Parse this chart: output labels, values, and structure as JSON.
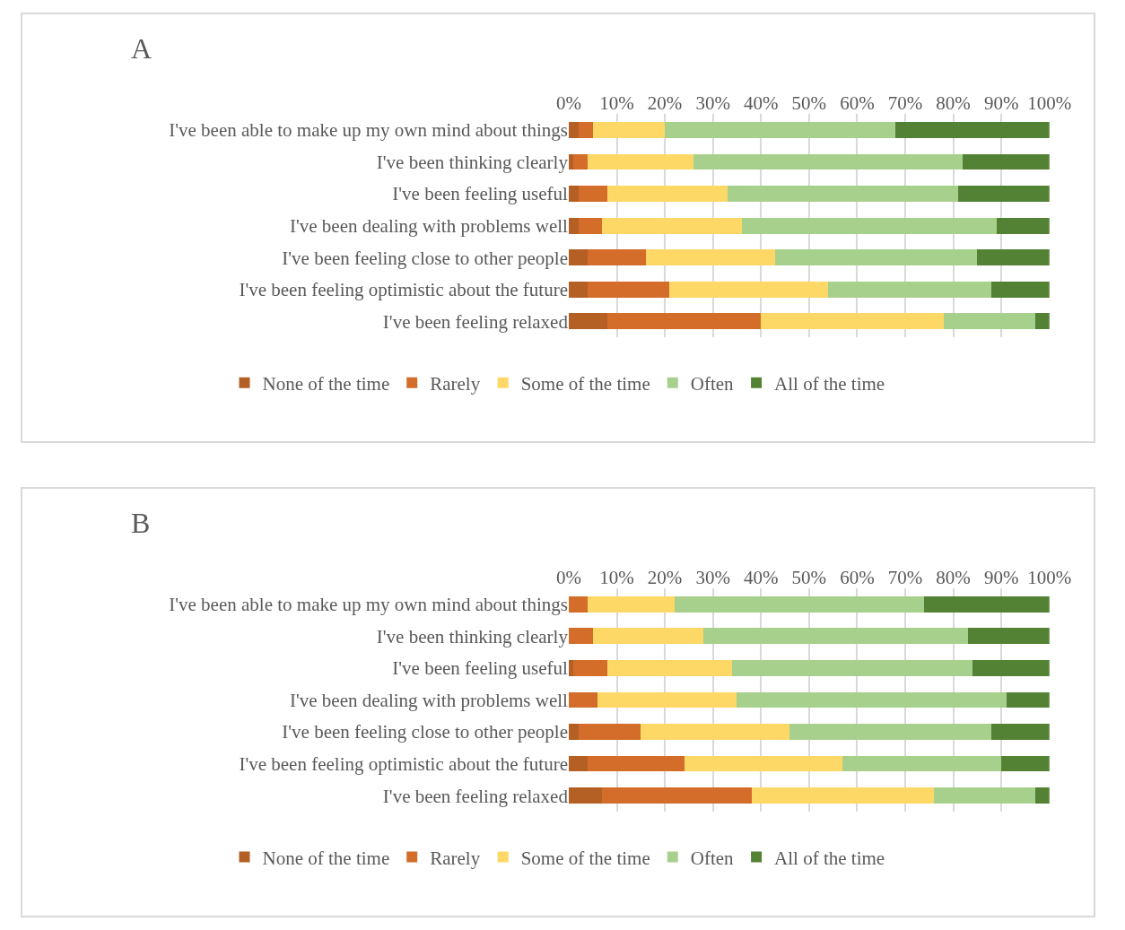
{
  "chart_data": [
    {
      "type": "bar",
      "title": "A",
      "orientation": "horizontal",
      "stacked": true,
      "grid": "x",
      "legend": "bottom",
      "categories": [
        "I've been able to make up my own mind about things",
        "I've been thinking clearly",
        "I've been feeling useful",
        "I've been dealing with problems well",
        "I've been feeling close to other people",
        "I've been feeling optimistic about the future",
        "I've been feeling relaxed"
      ],
      "xlim": [
        0,
        100
      ],
      "xticks": [
        {
          "value": 0,
          "label": "0%"
        },
        {
          "value": 10,
          "label": "10%"
        },
        {
          "value": 20,
          "label": "20%"
        },
        {
          "value": 30,
          "label": "30%"
        },
        {
          "value": 40,
          "label": "40%"
        },
        {
          "value": 50,
          "label": "50%"
        },
        {
          "value": 60,
          "label": "60%"
        },
        {
          "value": 70,
          "label": "70%"
        },
        {
          "value": 80,
          "label": "80%"
        },
        {
          "value": 90,
          "label": "90%"
        },
        {
          "value": 100,
          "label": "100%"
        }
      ],
      "series": [
        {
          "name": "None of the time",
          "color": "#b45f24",
          "values": [
            2,
            1,
            2,
            2,
            4,
            4,
            8
          ]
        },
        {
          "name": "Rarely",
          "color": "#d46d2a",
          "values": [
            3,
            3,
            6,
            5,
            12,
            17,
            32
          ]
        },
        {
          "name": "Some of the time",
          "color": "#fed866",
          "values": [
            15,
            22,
            25,
            29,
            27,
            33,
            38
          ]
        },
        {
          "name": "Often",
          "color": "#a8d08d",
          "values": [
            48,
            56,
            48,
            53,
            42,
            34,
            19
          ]
        },
        {
          "name": "All of the time",
          "color": "#548235",
          "values": [
            32,
            18,
            19,
            11,
            15,
            12,
            3
          ]
        }
      ]
    },
    {
      "type": "bar",
      "title": "B",
      "orientation": "horizontal",
      "stacked": true,
      "grid": "x",
      "legend": "bottom",
      "categories": [
        "I've been able to make up my own mind about things",
        "I've been thinking clearly",
        "I've been feeling useful",
        "I've been dealing with problems well",
        "I've been feeling close to other people",
        "I've been feeling optimistic about the future",
        "I've been feeling relaxed"
      ],
      "xlim": [
        0,
        100
      ],
      "xticks": [
        {
          "value": 0,
          "label": "0%"
        },
        {
          "value": 10,
          "label": "10%"
        },
        {
          "value": 20,
          "label": "20%"
        },
        {
          "value": 30,
          "label": "30%"
        },
        {
          "value": 40,
          "label": "40%"
        },
        {
          "value": 50,
          "label": "50%"
        },
        {
          "value": 60,
          "label": "60%"
        },
        {
          "value": 70,
          "label": "70%"
        },
        {
          "value": 80,
          "label": "80%"
        },
        {
          "value": 90,
          "label": "90%"
        },
        {
          "value": 100,
          "label": "100%"
        }
      ],
      "series": [
        {
          "name": "None of the time",
          "color": "#b45f24",
          "values": [
            0,
            0,
            1,
            0,
            2,
            4,
            7
          ]
        },
        {
          "name": "Rarely",
          "color": "#d46d2a",
          "values": [
            4,
            5,
            7,
            6,
            13,
            20,
            31
          ]
        },
        {
          "name": "Some of the time",
          "color": "#fed866",
          "values": [
            18,
            23,
            26,
            29,
            31,
            33,
            38
          ]
        },
        {
          "name": "Often",
          "color": "#a8d08d",
          "values": [
            52,
            55,
            50,
            56,
            42,
            33,
            21
          ]
        },
        {
          "name": "All of the time",
          "color": "#548235",
          "values": [
            26,
            17,
            16,
            9,
            12,
            10,
            3
          ]
        }
      ]
    }
  ]
}
